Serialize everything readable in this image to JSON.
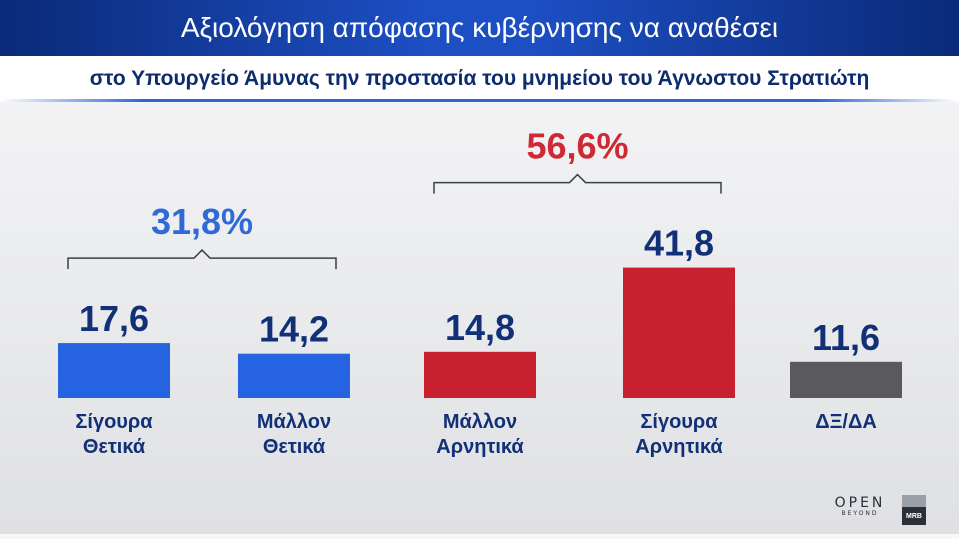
{
  "header": {
    "title": "Αξιολόγηση απόφασης κυβέρνησης να αναθέσει",
    "subtitle": "στο Υπουργείο Άμυνας την προστασία του μνημείου του Άγνωστου Στρατιώτη"
  },
  "chart_data": {
    "type": "bar",
    "categories": [
      [
        "Σίγουρα",
        "Θετικά"
      ],
      [
        "Μάλλον",
        "Θετικά"
      ],
      [
        "Μάλλον",
        "Αρνητικά"
      ],
      [
        "Σίγουρα",
        "Αρνητικά"
      ],
      [
        "ΔΞ/ΔΑ"
      ]
    ],
    "values": [
      17.6,
      14.2,
      14.8,
      41.8,
      11.6
    ],
    "value_labels": [
      "17,6",
      "14,2",
      "14,8",
      "41,8",
      "11,6"
    ],
    "bar_colors": [
      "#2563e0",
      "#2563e0",
      "#c8202e",
      "#c8202e",
      "#5a5a5e"
    ],
    "label_color": "#123078",
    "groups": [
      {
        "label": "31,8%",
        "from": 0,
        "to": 1,
        "color": "#2f6ad8"
      },
      {
        "label": "56,6%",
        "from": 2,
        "to": 3,
        "color": "#cf2a34"
      }
    ],
    "grid": false,
    "legend": "none"
  },
  "logos": {
    "open_main": "OPEN",
    "open_sub": "BEYOND",
    "mrb": "MRB"
  }
}
